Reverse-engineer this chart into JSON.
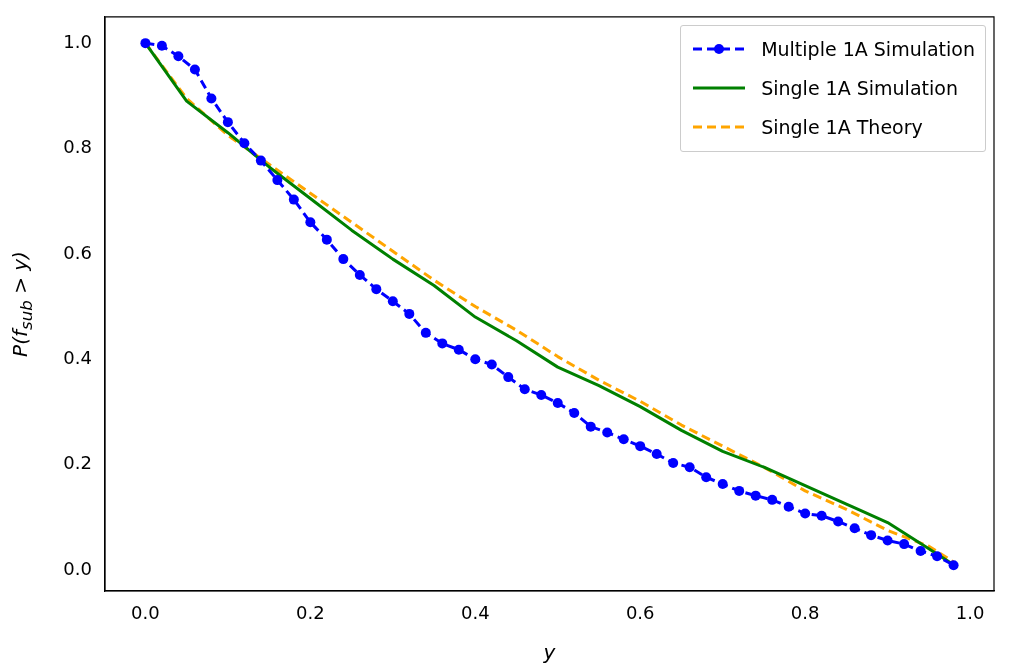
{
  "chart_data": {
    "type": "line",
    "xlabel": "y",
    "ylabel": "P(f$_{sub}$ > y)",
    "xlim": [
      -0.049,
      1.029
    ],
    "ylim": [
      -0.04,
      1.05
    ],
    "xticks": [
      {
        "value": 0,
        "label": "0.0"
      },
      {
        "value": 0.2,
        "label": "0.2"
      },
      {
        "value": 0.4,
        "label": "0.4"
      },
      {
        "value": 0.6,
        "label": "0.6"
      },
      {
        "value": 0.8,
        "label": "0.8"
      },
      {
        "value": 1,
        "label": "1.0"
      }
    ],
    "yticks": [
      {
        "value": 0,
        "label": "0.0"
      },
      {
        "value": 0.2,
        "label": "0.2"
      },
      {
        "value": 0.4,
        "label": "0.4"
      },
      {
        "value": 0.6,
        "label": "0.6"
      },
      {
        "value": 0.8,
        "label": "0.8"
      },
      {
        "value": 1,
        "label": "1.0"
      }
    ],
    "grid": false,
    "legend": "top right",
    "series": [
      {
        "name": "Multiple 1A Simulation",
        "color": "#0000ff",
        "marker": "circle",
        "line_style": "dashed",
        "x": [
          0,
          0.02,
          0.04,
          0.06,
          0.08,
          0.1,
          0.12,
          0.14,
          0.16,
          0.18,
          0.2,
          0.22,
          0.24,
          0.26,
          0.28,
          0.3,
          0.32,
          0.34,
          0.36,
          0.38,
          0.4,
          0.42,
          0.44,
          0.46,
          0.48,
          0.5,
          0.52,
          0.54,
          0.56,
          0.58,
          0.6,
          0.62,
          0.64,
          0.66,
          0.68,
          0.7,
          0.72,
          0.74,
          0.76,
          0.78,
          0.8,
          0.82,
          0.84,
          0.86,
          0.88,
          0.9,
          0.92,
          0.94,
          0.96,
          0.98
        ],
        "values": [
          1.0,
          0.995,
          0.975,
          0.95,
          0.895,
          0.85,
          0.81,
          0.777,
          0.74,
          0.703,
          0.66,
          0.627,
          0.59,
          0.56,
          0.533,
          0.51,
          0.486,
          0.45,
          0.43,
          0.418,
          0.4,
          0.39,
          0.366,
          0.343,
          0.332,
          0.317,
          0.298,
          0.272,
          0.261,
          0.248,
          0.235,
          0.22,
          0.203,
          0.195,
          0.176,
          0.163,
          0.15,
          0.141,
          0.133,
          0.12,
          0.107,
          0.103,
          0.092,
          0.079,
          0.066,
          0.056,
          0.049,
          0.036,
          0.026,
          0.009
        ]
      },
      {
        "name": "Single 1A Simulation",
        "color": "#008000",
        "marker": "none",
        "line_style": "solid",
        "x": [
          0,
          0.05,
          0.1,
          0.15,
          0.2,
          0.25,
          0.3,
          0.35,
          0.4,
          0.45,
          0.5,
          0.55,
          0.6,
          0.65,
          0.7,
          0.75,
          0.8,
          0.85,
          0.9,
          0.95,
          0.98
        ],
        "values": [
          1.0,
          0.89,
          0.83,
          0.765,
          0.705,
          0.645,
          0.59,
          0.54,
          0.48,
          0.435,
          0.385,
          0.35,
          0.31,
          0.265,
          0.225,
          0.195,
          0.16,
          0.125,
          0.09,
          0.04,
          0.01
        ]
      },
      {
        "name": "Single 1A Theory",
        "color": "#ffa500",
        "marker": "none",
        "line_style": "dashed",
        "x": [
          0,
          0.05,
          0.1,
          0.15,
          0.2,
          0.25,
          0.3,
          0.35,
          0.4,
          0.45,
          0.5,
          0.55,
          0.6,
          0.65,
          0.7,
          0.75,
          0.8,
          0.85,
          0.9,
          0.95,
          0.98
        ],
        "values": [
          1.0,
          0.895,
          0.825,
          0.77,
          0.715,
          0.66,
          0.605,
          0.55,
          0.5,
          0.455,
          0.405,
          0.36,
          0.32,
          0.275,
          0.235,
          0.195,
          0.15,
          0.115,
          0.075,
          0.045,
          0.015
        ]
      }
    ]
  }
}
